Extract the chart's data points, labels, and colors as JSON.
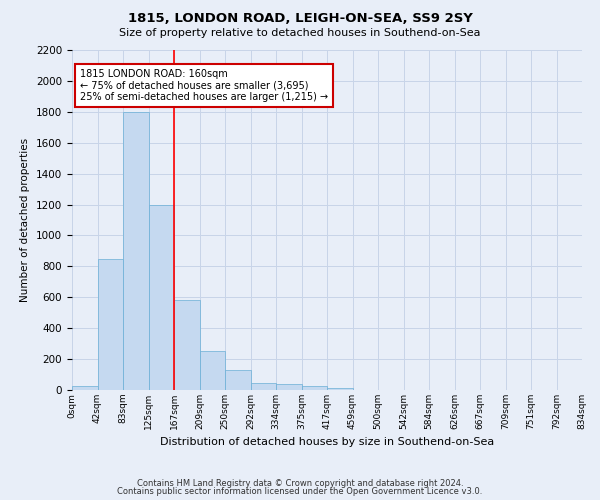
{
  "title1": "1815, LONDON ROAD, LEIGH-ON-SEA, SS9 2SY",
  "title2": "Size of property relative to detached houses in Southend-on-Sea",
  "xlabel": "Distribution of detached houses by size in Southend-on-Sea",
  "ylabel": "Number of detached properties",
  "bar_values": [
    25,
    850,
    1800,
    1200,
    580,
    255,
    130,
    45,
    40,
    25,
    15,
    0,
    0,
    0,
    0,
    0,
    0,
    0,
    0,
    0
  ],
  "bin_labels": [
    "0sqm",
    "42sqm",
    "83sqm",
    "125sqm",
    "167sqm",
    "209sqm",
    "250sqm",
    "292sqm",
    "334sqm",
    "375sqm",
    "417sqm",
    "459sqm",
    "500sqm",
    "542sqm",
    "584sqm",
    "626sqm",
    "667sqm",
    "709sqm",
    "751sqm",
    "792sqm",
    "834sqm"
  ],
  "bar_color": "#c5d9f0",
  "bar_edge_color": "#6aaed6",
  "grid_color": "#c8d4e8",
  "background_color": "#e8eef8",
  "red_line_x": 4,
  "annotation_text": "1815 LONDON ROAD: 160sqm\n← 75% of detached houses are smaller (3,695)\n25% of semi-detached houses are larger (1,215) →",
  "annotation_box_color": "#ffffff",
  "annotation_box_edge": "#cc0000",
  "ylim": [
    0,
    2200
  ],
  "yticks": [
    0,
    200,
    400,
    600,
    800,
    1000,
    1200,
    1400,
    1600,
    1800,
    2000,
    2200
  ],
  "footnote1": "Contains HM Land Registry data © Crown copyright and database right 2024.",
  "footnote2": "Contains public sector information licensed under the Open Government Licence v3.0."
}
